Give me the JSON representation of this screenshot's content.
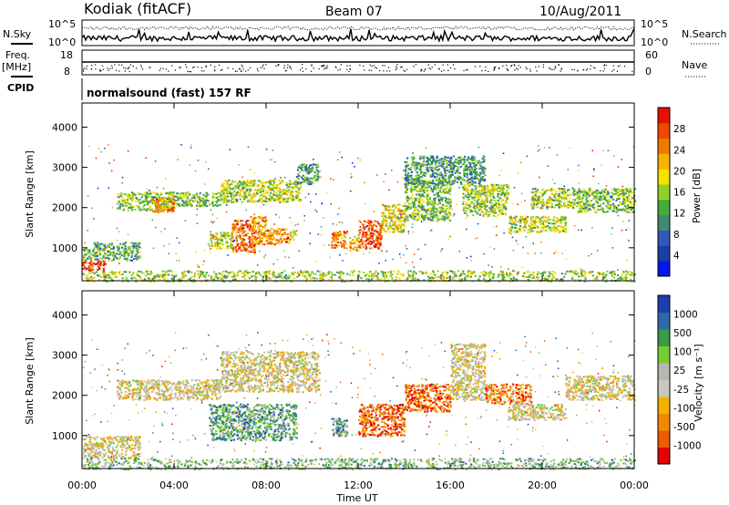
{
  "header": {
    "station": "Kodiak (fitACF)",
    "beam": "Beam 07",
    "date": "10/Aug/2011"
  },
  "left_labels": {
    "nsky": "N.Sky",
    "freq": "Freq.",
    "freq_unit": "[MHz]",
    "cpid": "CPID"
  },
  "right_labels": {
    "nsearch": "N.Search",
    "nave": "Nave"
  },
  "top_axes": {
    "noise_ticks": [
      "10^5",
      "10^0"
    ],
    "freq_ticks": [
      "18",
      "8"
    ],
    "nave_ticks": [
      "60",
      "0"
    ]
  },
  "cpid_text": "normalsound (fast) 157 RF",
  "colors": {
    "power_scale": [
      "#0018ee",
      "#1b3fa5",
      "#2f59b8",
      "#3e8a6e",
      "#45aa3c",
      "#8fd02a",
      "#f5e000",
      "#f6b300",
      "#f07a00",
      "#f04800",
      "#e81000"
    ],
    "velocity_scale": [
      "#e80000",
      "#f05a00",
      "#f28a00",
      "#f5b000",
      "#c8c8c0",
      "#b8b8b0",
      "#77cc33",
      "#3a9a4a",
      "#2f6aa8",
      "#1c3fb0"
    ]
  },
  "chart_data": [
    {
      "type": "line",
      "name": "noise-panel",
      "series": [
        {
          "name": "N.Sky",
          "description": "sky noise, log scale"
        },
        {
          "name": "N.Search",
          "description": "search noise, dotted"
        }
      ],
      "yticks": [
        "10^0",
        "10^5"
      ]
    },
    {
      "type": "line",
      "name": "freq-nave-panel",
      "ylim_left": [
        8,
        18
      ],
      "ylim_right": [
        0,
        60
      ]
    },
    {
      "type": "heatmap",
      "name": "power-panel",
      "xlabel": "",
      "ylabel": "Slant Range [km]",
      "yticks": [
        "1000",
        "2000",
        "3000",
        "4000"
      ],
      "ylim": [
        180,
        4600
      ],
      "xlim": [
        0,
        24
      ],
      "colorbar": {
        "label": "Power [dB]",
        "ticks": [
          "4",
          "8",
          "12",
          "16",
          "20",
          "24",
          "28"
        ]
      },
      "echo_regions": [
        {
          "t0": 0.0,
          "t1": 1.0,
          "r0": 450,
          "r1": 700,
          "level": 0.95
        },
        {
          "t0": 0.0,
          "t1": 2.5,
          "r0": 700,
          "r1": 1000,
          "level": 0.4
        },
        {
          "t0": 0.5,
          "t1": 2.5,
          "r0": 1000,
          "r1": 1150,
          "level": 0.35
        },
        {
          "t0": 1.5,
          "t1": 4.0,
          "r0": 1950,
          "r1": 2400,
          "level": 0.45
        },
        {
          "t0": 3.0,
          "t1": 4.0,
          "r0": 1900,
          "r1": 2250,
          "level": 0.8
        },
        {
          "t0": 4.0,
          "t1": 6.0,
          "r0": 2050,
          "r1": 2400,
          "level": 0.45
        },
        {
          "t0": 6.0,
          "t1": 9.5,
          "r0": 2150,
          "r1": 2700,
          "level": 0.55
        },
        {
          "t0": 9.3,
          "t1": 10.3,
          "r0": 2600,
          "r1": 3100,
          "level": 0.35
        },
        {
          "t0": 5.5,
          "t1": 6.5,
          "r0": 1000,
          "r1": 1400,
          "level": 0.6
        },
        {
          "t0": 6.5,
          "t1": 7.5,
          "r0": 900,
          "r1": 1700,
          "level": 0.85
        },
        {
          "t0": 7.3,
          "t1": 8.0,
          "r0": 1100,
          "r1": 1800,
          "level": 0.75
        },
        {
          "t0": 8.0,
          "t1": 9.0,
          "r0": 1100,
          "r1": 1500,
          "level": 0.8
        },
        {
          "t0": 9.0,
          "t1": 9.3,
          "r0": 1200,
          "r1": 1450,
          "level": 0.6
        },
        {
          "t0": 10.8,
          "t1": 11.5,
          "r0": 1000,
          "r1": 1450,
          "level": 0.8
        },
        {
          "t0": 11.6,
          "t1": 12.0,
          "r0": 950,
          "r1": 1350,
          "level": 0.7
        },
        {
          "t0": 12.0,
          "t1": 13.0,
          "r0": 1000,
          "r1": 1700,
          "level": 0.9
        },
        {
          "t0": 13.0,
          "t1": 14.0,
          "r0": 1400,
          "r1": 2100,
          "level": 0.6
        },
        {
          "t0": 14.0,
          "t1": 16.0,
          "r0": 1700,
          "r1": 2700,
          "level": 0.45
        },
        {
          "t0": 14.0,
          "t1": 17.5,
          "r0": 2600,
          "r1": 3300,
          "level": 0.35
        },
        {
          "t0": 16.5,
          "t1": 18.5,
          "r0": 1800,
          "r1": 2600,
          "level": 0.5
        },
        {
          "t0": 18.5,
          "t1": 21.0,
          "r0": 1400,
          "r1": 1800,
          "level": 0.55
        },
        {
          "t0": 19.5,
          "t1": 21.5,
          "r0": 2000,
          "r1": 2500,
          "level": 0.5
        },
        {
          "t0": 21.5,
          "t1": 24.0,
          "r0": 1900,
          "r1": 2500,
          "level": 0.45
        },
        {
          "t0": 0.0,
          "t1": 24.0,
          "r0": 180,
          "r1": 450,
          "level": 0.5
        }
      ]
    },
    {
      "type": "heatmap",
      "name": "velocity-panel",
      "xlabel": "Time UT",
      "ylabel": "Slant Range [km]",
      "yticks": [
        "1000",
        "2000",
        "3000",
        "4000"
      ],
      "xticks": [
        "00:00",
        "04:00",
        "08:00",
        "12:00",
        "16:00",
        "20:00",
        "00:00"
      ],
      "ylim": [
        180,
        4600
      ],
      "xlim": [
        0,
        24
      ],
      "colorbar": {
        "label": "Velocity [m s⁻¹]",
        "ticks": [
          "1000",
          "500",
          "100",
          "25",
          "-25",
          "-100",
          "-500",
          "-1000"
        ]
      },
      "echo_regions": [
        {
          "t0": 0.0,
          "t1": 2.5,
          "r0": 450,
          "r1": 1000,
          "level": 0.45
        },
        {
          "t0": 1.5,
          "t1": 6.0,
          "r0": 1900,
          "r1": 2400,
          "level": 0.45
        },
        {
          "t0": 6.0,
          "t1": 10.3,
          "r0": 2100,
          "r1": 3100,
          "level": 0.45
        },
        {
          "t0": 5.5,
          "t1": 9.3,
          "r0": 900,
          "r1": 1800,
          "level": 0.75
        },
        {
          "t0": 10.8,
          "t1": 11.5,
          "r0": 1000,
          "r1": 1450,
          "level": 0.75
        },
        {
          "t0": 12.0,
          "t1": 14.0,
          "r0": 1000,
          "r1": 1800,
          "level": 0.15
        },
        {
          "t0": 14.0,
          "t1": 16.0,
          "r0": 1600,
          "r1": 2300,
          "level": 0.15
        },
        {
          "t0": 16.0,
          "t1": 17.5,
          "r0": 1900,
          "r1": 3300,
          "level": 0.45
        },
        {
          "t0": 17.5,
          "t1": 19.5,
          "r0": 1800,
          "r1": 2300,
          "level": 0.2
        },
        {
          "t0": 18.5,
          "t1": 21.0,
          "r0": 1400,
          "r1": 1800,
          "level": 0.45
        },
        {
          "t0": 21.0,
          "t1": 24.0,
          "r0": 1900,
          "r1": 2500,
          "level": 0.45
        },
        {
          "t0": 0.0,
          "t1": 24.0,
          "r0": 180,
          "r1": 450,
          "level": 0.65
        }
      ]
    }
  ]
}
